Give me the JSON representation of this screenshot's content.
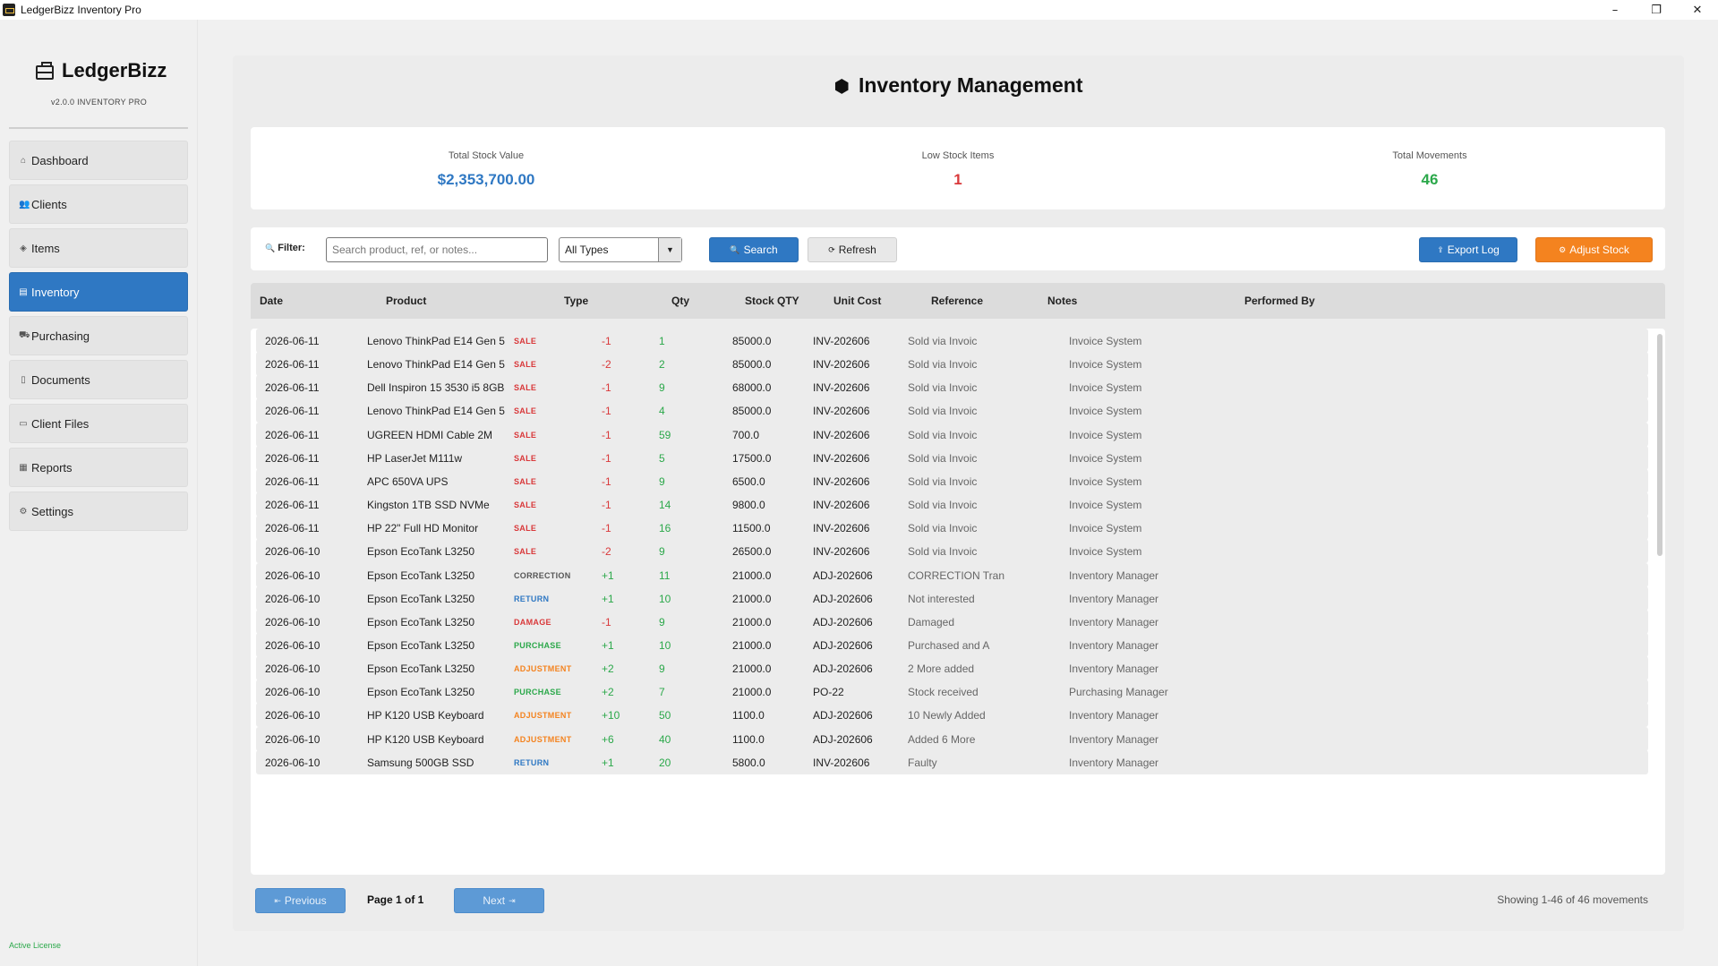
{
  "window": {
    "title": "LedgerBizz Inventory Pro",
    "controls": [
      "–",
      "❐",
      "✕"
    ]
  },
  "sidebar": {
    "brand": "LedgerBizz",
    "version": "v2.0.0  INVENTORY PRO",
    "items": [
      {
        "label": "Dashboard",
        "icon": "dashboard-icon"
      },
      {
        "label": "Clients",
        "icon": "clients-icon"
      },
      {
        "label": "Items",
        "icon": "items-icon"
      },
      {
        "label": "Inventory",
        "icon": "inventory-icon",
        "active": true
      },
      {
        "label": "Purchasing",
        "icon": "cart-icon"
      },
      {
        "label": "Documents",
        "icon": "document-icon"
      },
      {
        "label": "Client Files",
        "icon": "folder-icon"
      },
      {
        "label": "Reports",
        "icon": "report-icon"
      },
      {
        "label": "Settings",
        "icon": "gear-icon"
      }
    ],
    "license": "Active License"
  },
  "main": {
    "title": "Inventory Management",
    "stats": [
      {
        "label": "Total Stock Value",
        "value": "$2,353,700.00",
        "color": "#2f78c3"
      },
      {
        "label": "Low Stock Items",
        "value": "1",
        "color": "#d9383a"
      },
      {
        "label": "Total Movements",
        "value": "46",
        "color": "#2ba84a"
      }
    ],
    "filter": {
      "label": "Filter:",
      "search_placeholder": "Search product, ref, or notes...",
      "type_selected": "All Types",
      "search_button": "Search",
      "refresh_button": "Refresh",
      "export_button": "Export Log",
      "adjust_button": "Adjust Stock"
    },
    "table": {
      "columns": [
        "Date",
        "Product",
        "Type",
        "Qty",
        "Stock QTY",
        "Unit Cost",
        "Reference",
        "Notes",
        "Performed By"
      ],
      "type_colors": {
        "SALE": "#d9383a",
        "CORRECTION": "#555555",
        "RETURN": "#2f78c3",
        "DAMAGE": "#d9383a",
        "PURCHASE": "#2ba84a",
        "ADJUSTMENT": "#f4831f"
      },
      "rows": [
        {
          "date": "2026-06-11",
          "product": "Lenovo ThinkPad E14 Gen 5",
          "type": "SALE",
          "qty": "-1",
          "stock": "1",
          "cost": "85000.0",
          "ref": "INV-202606",
          "notes": "Sold via Invoic",
          "by": "Invoice System"
        },
        {
          "date": "2026-06-11",
          "product": "Lenovo ThinkPad E14 Gen 5",
          "type": "SALE",
          "qty": "-2",
          "stock": "2",
          "cost": "85000.0",
          "ref": "INV-202606",
          "notes": "Sold via Invoic",
          "by": "Invoice System"
        },
        {
          "date": "2026-06-11",
          "product": "Dell Inspiron 15 3530 i5 8GB",
          "type": "SALE",
          "qty": "-1",
          "stock": "9",
          "cost": "68000.0",
          "ref": "INV-202606",
          "notes": "Sold via Invoic",
          "by": "Invoice System"
        },
        {
          "date": "2026-06-11",
          "product": "Lenovo ThinkPad E14 Gen 5",
          "type": "SALE",
          "qty": "-1",
          "stock": "4",
          "cost": "85000.0",
          "ref": "INV-202606",
          "notes": "Sold via Invoic",
          "by": "Invoice System"
        },
        {
          "date": "2026-06-11",
          "product": "UGREEN HDMI Cable 2M",
          "type": "SALE",
          "qty": "-1",
          "stock": "59",
          "cost": "700.0",
          "ref": "INV-202606",
          "notes": "Sold via Invoic",
          "by": "Invoice System"
        },
        {
          "date": "2026-06-11",
          "product": "HP LaserJet M111w",
          "type": "SALE",
          "qty": "-1",
          "stock": "5",
          "cost": "17500.0",
          "ref": "INV-202606",
          "notes": "Sold via Invoic",
          "by": "Invoice System"
        },
        {
          "date": "2026-06-11",
          "product": "APC 650VA UPS",
          "type": "SALE",
          "qty": "-1",
          "stock": "9",
          "cost": "6500.0",
          "ref": "INV-202606",
          "notes": "Sold via Invoic",
          "by": "Invoice System"
        },
        {
          "date": "2026-06-11",
          "product": "Kingston 1TB SSD NVMe",
          "type": "SALE",
          "qty": "-1",
          "stock": "14",
          "cost": "9800.0",
          "ref": "INV-202606",
          "notes": "Sold via Invoic",
          "by": "Invoice System"
        },
        {
          "date": "2026-06-11",
          "product": "HP 22\" Full HD Monitor",
          "type": "SALE",
          "qty": "-1",
          "stock": "16",
          "cost": "11500.0",
          "ref": "INV-202606",
          "notes": "Sold via Invoic",
          "by": "Invoice System"
        },
        {
          "date": "2026-06-10",
          "product": "Epson EcoTank L3250",
          "type": "SALE",
          "qty": "-2",
          "stock": "9",
          "cost": "26500.0",
          "ref": "INV-202606",
          "notes": "Sold via Invoic",
          "by": "Invoice System"
        },
        {
          "date": "2026-06-10",
          "product": "Epson EcoTank L3250",
          "type": "CORRECTION",
          "qty": "+1",
          "stock": "11",
          "cost": "21000.0",
          "ref": "ADJ-202606",
          "notes": "CORRECTION Tran",
          "by": "Inventory Manager"
        },
        {
          "date": "2026-06-10",
          "product": "Epson EcoTank L3250",
          "type": "RETURN",
          "qty": "+1",
          "stock": "10",
          "cost": "21000.0",
          "ref": "ADJ-202606",
          "notes": "Not interested",
          "by": "Inventory Manager"
        },
        {
          "date": "2026-06-10",
          "product": "Epson EcoTank L3250",
          "type": "DAMAGE",
          "qty": "-1",
          "stock": "9",
          "cost": "21000.0",
          "ref": "ADJ-202606",
          "notes": "Damaged",
          "by": "Inventory Manager"
        },
        {
          "date": "2026-06-10",
          "product": "Epson EcoTank L3250",
          "type": "PURCHASE",
          "qty": "+1",
          "stock": "10",
          "cost": "21000.0",
          "ref": "ADJ-202606",
          "notes": "Purchased and A",
          "by": "Inventory Manager"
        },
        {
          "date": "2026-06-10",
          "product": "Epson EcoTank L3250",
          "type": "ADJUSTMENT",
          "qty": "+2",
          "stock": "9",
          "cost": "21000.0",
          "ref": "ADJ-202606",
          "notes": "2 More added",
          "by": "Inventory Manager"
        },
        {
          "date": "2026-06-10",
          "product": "Epson EcoTank L3250",
          "type": "PURCHASE",
          "qty": "+2",
          "stock": "7",
          "cost": "21000.0",
          "ref": "PO-22",
          "notes": "Stock received",
          "by": "Purchasing Manager"
        },
        {
          "date": "2026-06-10",
          "product": "HP K120 USB Keyboard",
          "type": "ADJUSTMENT",
          "qty": "+10",
          "stock": "50",
          "cost": "1100.0",
          "ref": "ADJ-202606",
          "notes": "10 Newly Added",
          "by": "Inventory Manager"
        },
        {
          "date": "2026-06-10",
          "product": "HP K120 USB Keyboard",
          "type": "ADJUSTMENT",
          "qty": "+6",
          "stock": "40",
          "cost": "1100.0",
          "ref": "ADJ-202606",
          "notes": "Added 6 More",
          "by": "Inventory Manager"
        },
        {
          "date": "2026-06-10",
          "product": "Samsung 500GB SSD",
          "type": "RETURN",
          "qty": "+1",
          "stock": "20",
          "cost": "5800.0",
          "ref": "INV-202606",
          "notes": "Faulty",
          "by": "Inventory Manager"
        }
      ]
    },
    "pager": {
      "previous": "Previous",
      "next": "Next",
      "page_label": "Page 1 of 1",
      "showing": "Showing 1-46 of 46 movements"
    }
  }
}
